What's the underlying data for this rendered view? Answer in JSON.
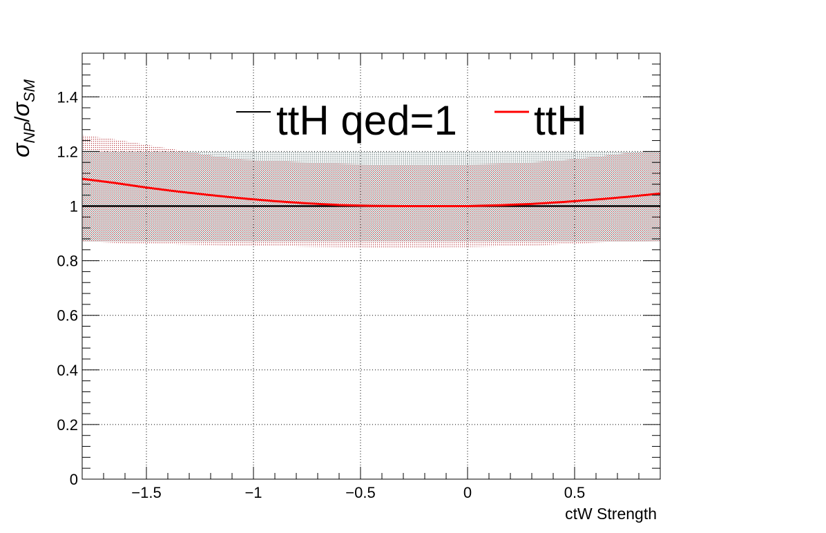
{
  "chart_data": {
    "type": "line",
    "xlabel": "ctW Strength",
    "ylabel": "σ_NP/σ_SM",
    "ylabel_parts": {
      "sym1": "σ",
      "sub1": "NP",
      "slash": "/",
      "sym2": "σ",
      "sub2": "SM"
    },
    "xlim": [
      -1.8,
      0.9
    ],
    "ylim": [
      0,
      1.56
    ],
    "x_ticks": [
      -1.5,
      -1,
      -0.5,
      0,
      0.5
    ],
    "x_tick_labels": [
      "−1.5",
      "−1",
      "−0.5",
      "0",
      "0.5"
    ],
    "y_ticks": [
      0,
      0.2,
      0.4,
      0.6,
      0.8,
      1,
      1.2,
      1.4
    ],
    "y_tick_labels": [
      "0",
      "0.2",
      "0.4",
      "0.6",
      "0.8",
      "1",
      "1.2",
      "1.4"
    ],
    "grid": true,
    "legend_position": "top-center",
    "series": [
      {
        "name": "ttH qed=1",
        "color": "#000000",
        "x": [
          -1.8,
          -1.5,
          -1.2,
          -0.9,
          -0.6,
          -0.3,
          0,
          0.3,
          0.6,
          0.9
        ],
        "y": [
          1.0,
          1.0,
          1.0,
          1.0,
          1.0,
          1.0,
          1.0,
          1.0,
          1.0,
          1.0
        ],
        "band_low": [
          0.87,
          0.87,
          0.87,
          0.87,
          0.87,
          0.87,
          0.87,
          0.87,
          0.87,
          0.87
        ],
        "band_high": [
          1.2,
          1.2,
          1.2,
          1.2,
          1.2,
          1.2,
          1.2,
          1.2,
          1.2,
          1.2
        ]
      },
      {
        "name": "ttH",
        "color": "#ff0000",
        "x": [
          -1.8,
          -1.65,
          -1.5,
          -1.35,
          -1.2,
          -1.05,
          -0.9,
          -0.75,
          -0.6,
          -0.45,
          -0.3,
          -0.15,
          0,
          0.15,
          0.3,
          0.45,
          0.6,
          0.75,
          0.9
        ],
        "y": [
          1.1,
          1.085,
          1.068,
          1.053,
          1.04,
          1.028,
          1.018,
          1.01,
          1.004,
          1.001,
          1.0,
          1.0,
          1.0,
          1.003,
          1.008,
          1.015,
          1.024,
          1.034,
          1.046
        ],
        "band_low": [
          0.87,
          0.865,
          0.862,
          0.859,
          0.857,
          0.855,
          0.853,
          0.851,
          0.85,
          0.849,
          0.849,
          0.849,
          0.85,
          0.852,
          0.855,
          0.86,
          0.866,
          0.87,
          0.872
        ],
        "band_high": [
          1.26,
          1.245,
          1.225,
          1.205,
          1.185,
          1.17,
          1.165,
          1.16,
          1.155,
          1.152,
          1.15,
          1.15,
          1.152,
          1.155,
          1.16,
          1.168,
          1.18,
          1.195,
          1.205
        ]
      }
    ]
  }
}
